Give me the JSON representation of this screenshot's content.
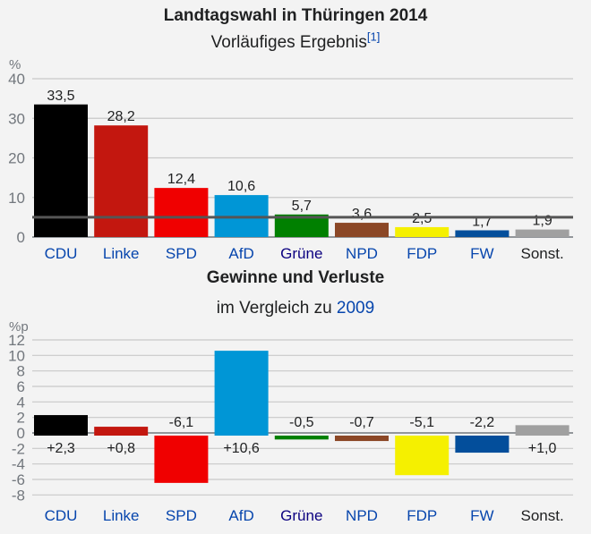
{
  "chart_data": [
    {
      "type": "bar",
      "title": "Landtagswahl in Thüringen 2014",
      "subtitle": "Vorläufiges Ergebnis",
      "footnote_ref": "[1]",
      "ylabel": "%",
      "ylim": [
        0,
        40
      ],
      "yticks": [
        0,
        10,
        20,
        30,
        40
      ],
      "grid": true,
      "threshold_line": 5,
      "categories": [
        "CDU",
        "Linke",
        "SPD",
        "AfD",
        "Grüne",
        "NPD",
        "FDP",
        "FW",
        "Sonst."
      ],
      "values": [
        33.5,
        28.2,
        12.4,
        10.6,
        5.7,
        3.6,
        2.5,
        1.7,
        1.9
      ],
      "value_labels": [
        "33,5",
        "28,2",
        "12,4",
        "10,6",
        "5,7",
        "3,6",
        "2,5",
        "1,7",
        "1,9"
      ],
      "colors": [
        "#000000",
        "#c3170f",
        "#f00000",
        "#0096d6",
        "#008000",
        "#8b4726",
        "#f5f000",
        "#034e9b",
        "#a0a0a0"
      ]
    },
    {
      "type": "bar",
      "title": "Gewinne und Verluste",
      "subtitle_prefix": "im Vergleich zu",
      "subtitle_link": "2009",
      "ylabel": "%p",
      "ylim": [
        -8,
        12
      ],
      "yticks": [
        -8,
        -6,
        -4,
        -2,
        0,
        2,
        4,
        6,
        8,
        10,
        12
      ],
      "grid": true,
      "categories": [
        "CDU",
        "Linke",
        "SPD",
        "AfD",
        "Grüne",
        "NPD",
        "FDP",
        "FW",
        "Sonst."
      ],
      "values": [
        2.3,
        0.8,
        -6.1,
        10.6,
        -0.5,
        -0.7,
        -5.1,
        -2.2,
        1.0
      ],
      "value_labels": [
        "+2,3",
        "+0,8",
        "-6,1",
        "+10,6",
        "-0,5",
        "-0,7",
        "-5,1",
        "-2,2",
        "+1,0"
      ],
      "colors": [
        "#000000",
        "#c3170f",
        "#f00000",
        "#0096d6",
        "#008000",
        "#8b4726",
        "#f5f000",
        "#034e9b",
        "#a0a0a0"
      ]
    }
  ],
  "label_colors": {
    "link": "#0645ad",
    "visited": "#0b0080",
    "plain": "#202122"
  },
  "label_styles": [
    "link",
    "link",
    "link",
    "link",
    "visited",
    "link",
    "link",
    "link",
    "plain"
  ]
}
